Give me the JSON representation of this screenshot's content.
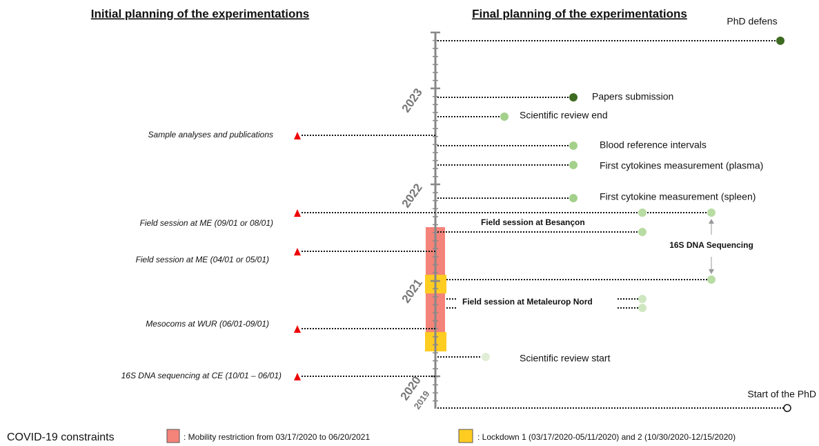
{
  "headers": {
    "initial": "Initial planning of the experimentations",
    "final": "Final planning of the experimentations"
  },
  "initial_items": [
    "Sample analyses and publications",
    "Field session at ME (09/01 or 08/01)",
    "Field session at ME (04/01 or 05/01)",
    "Mesocoms at WUR (06/01-09/01)",
    "16S DNA sequencing at CE (10/01 – 06/01)"
  ],
  "years": [
    "2023",
    "2022",
    "2021",
    "2020",
    "2019"
  ],
  "final_items": {
    "phd_defense": "PhD defens",
    "papers": "Papers submission",
    "review_end": "Scientific review end",
    "blood": "Blood reference intervals",
    "plasma": "First cytokines measurement (plasma)",
    "spleen": "First cytokine measurement (spleen)",
    "besancon": "Field session at Besançon",
    "sequencing": "16S DNA Sequencing",
    "metaleurop": "Field session at Metaleurop Nord",
    "review_start": "Scientific review start",
    "phd_start": "Start of the PhD"
  },
  "legend": {
    "title": "COVID-19 constraints",
    "mobility": ": Mobility restriction from 03/17/2020 to 06/20/2021",
    "lockdown": ": Lockdown 1 (03/17/2020-05/11/2020) and 2 (10/30/2020-12/15/2020)"
  }
}
